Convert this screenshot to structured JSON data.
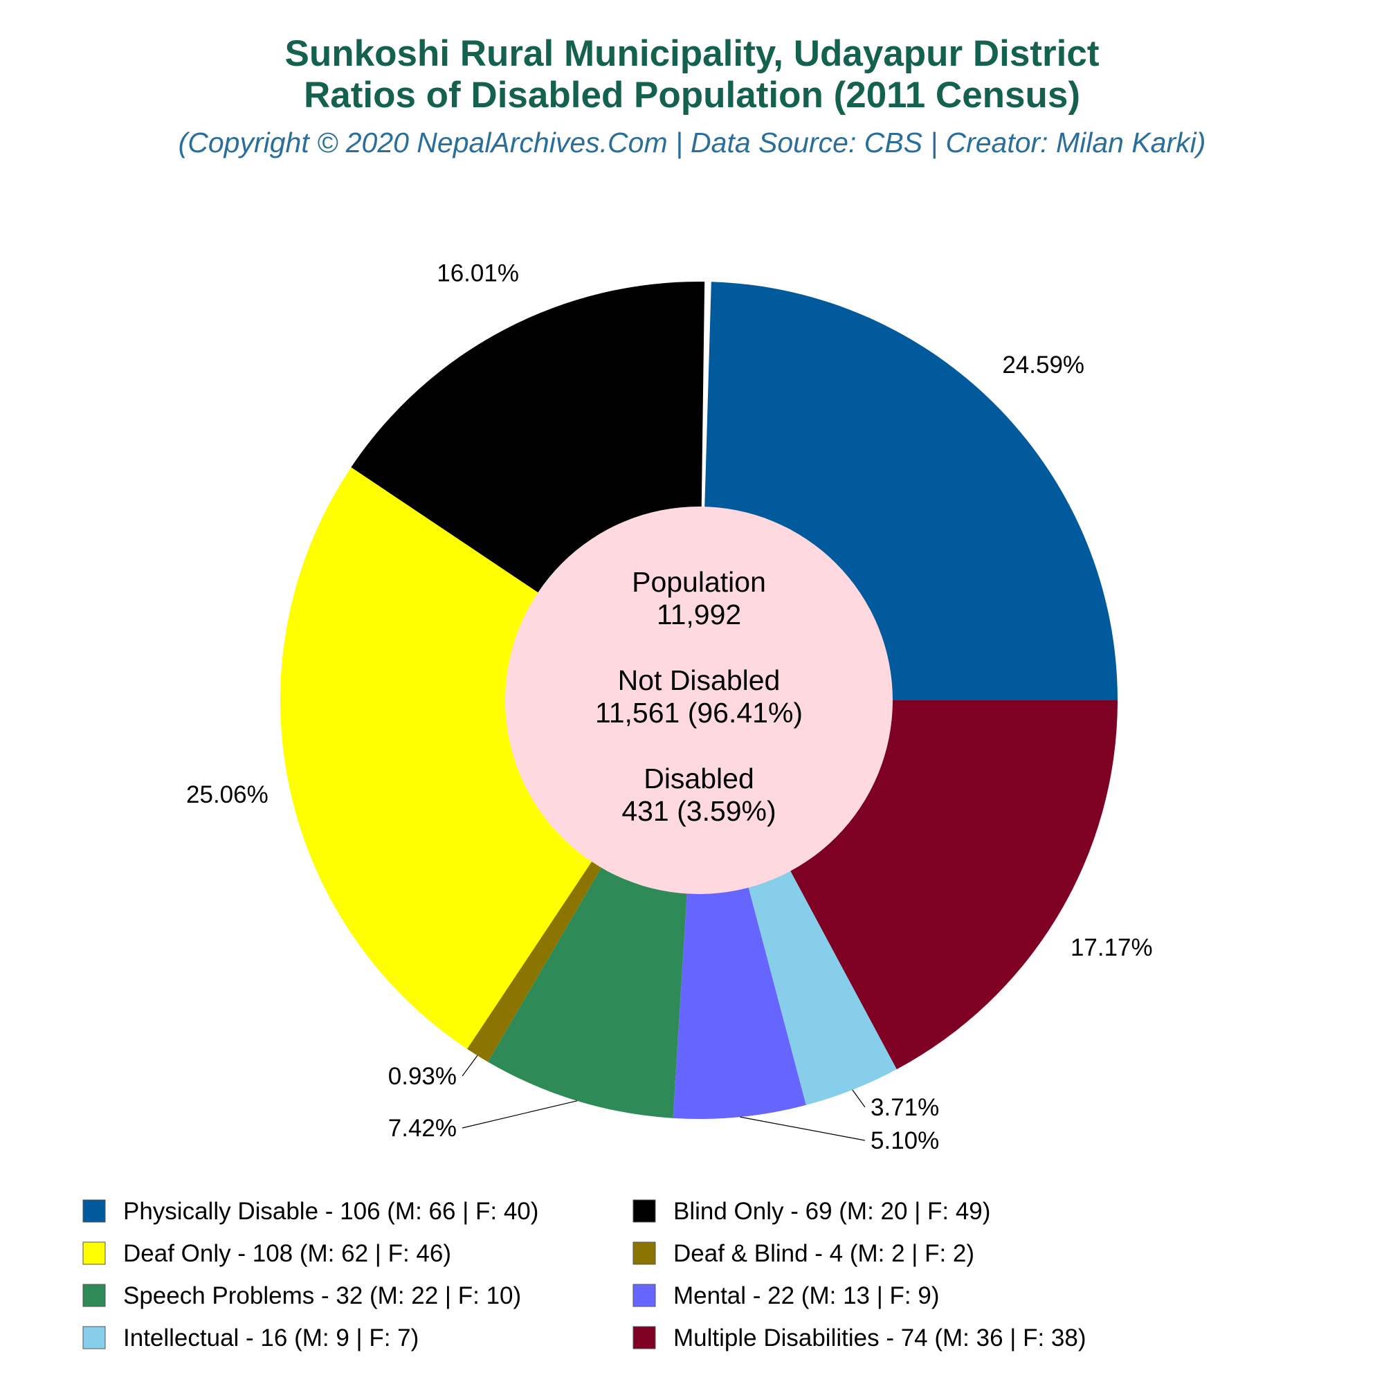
{
  "chart_data": {
    "type": "pie",
    "title_line1": "Sunkoshi Rural Municipality, Udayapur District",
    "title_line2": "Ratios of Disabled Population (2011 Census)",
    "subtitle": "(Copyright © 2020 NepalArchives.Com | Data Source: CBS | Creator: Milan Karki)",
    "center": {
      "population_label": "Population",
      "population_value": "11,992",
      "not_disabled_label": "Not Disabled",
      "not_disabled_value": "11,561 (96.41%)",
      "disabled_label": "Disabled",
      "disabled_value": "431 (3.59%)"
    },
    "legend_position": "bottom",
    "slices": [
      {
        "key": "physically-disable",
        "legend": "Physically Disable - 106 (M: 66 | F: 40)",
        "value": 106,
        "percent_label": "24.59%",
        "color": "#005a9c"
      },
      {
        "key": "multiple-disabilities",
        "legend": "Multiple Disabilities - 74 (M: 36 | F: 38)",
        "value": 74,
        "percent_label": "17.17%",
        "color": "#7e0023"
      },
      {
        "key": "intellectual",
        "legend": "Intellectual - 16 (M: 9 | F: 7)",
        "value": 16,
        "percent_label": "3.71%",
        "color": "#87ceeb"
      },
      {
        "key": "mental",
        "legend": "Mental - 22 (M: 13 | F: 9)",
        "value": 22,
        "percent_label": "5.10%",
        "color": "#6666ff"
      },
      {
        "key": "speech-problems",
        "legend": "Speech Problems - 32 (M: 22 | F: 10)",
        "value": 32,
        "percent_label": "7.42%",
        "color": "#2e8b57"
      },
      {
        "key": "deaf-and-blind",
        "legend": "Deaf & Blind - 4 (M: 2 | F: 2)",
        "value": 4,
        "percent_label": "0.93%",
        "color": "#8b7500"
      },
      {
        "key": "deaf-only",
        "legend": "Deaf Only - 108 (M: 62 | F: 46)",
        "value": 108,
        "percent_label": "25.06%",
        "color": "#ffff00"
      },
      {
        "key": "blind-only",
        "legend": "Blind Only - 69 (M: 20 | F: 49)",
        "value": 69,
        "percent_label": "16.01%",
        "color": "#000000"
      }
    ],
    "legend_order": [
      "physically-disable",
      "blind-only",
      "deaf-only",
      "deaf-and-blind",
      "speech-problems",
      "mental",
      "intellectual",
      "multiple-disabilities"
    ],
    "center_fill": "#ffd9e0"
  }
}
